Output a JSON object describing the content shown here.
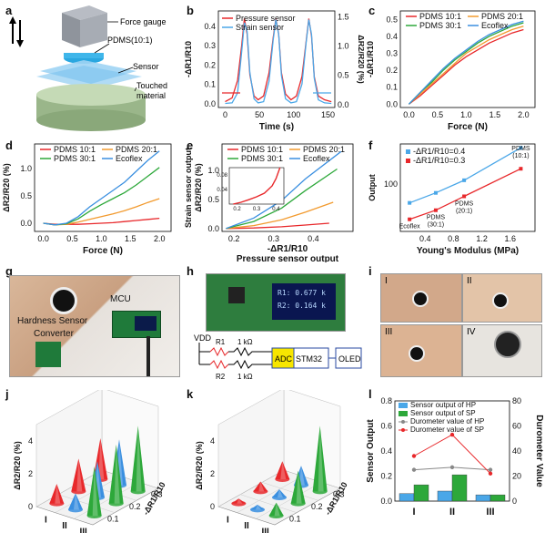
{
  "panel_letters": [
    "a",
    "b",
    "c",
    "d",
    "e",
    "f",
    "g",
    "h",
    "i",
    "j",
    "k",
    "l"
  ],
  "panel_a": {
    "labels": [
      "Force gauge",
      "PDMS(10:1)",
      "Sensor",
      "Touched",
      "material"
    ]
  },
  "panel_g": {
    "labels": [
      "MCU",
      "Hardness Sensor",
      "Converter"
    ]
  },
  "panel_h": {
    "screen_lines": [
      "R1: 0.677 k",
      "R2: 0.164 k"
    ],
    "circuit": [
      "VDD",
      "R1",
      "R2",
      "1 kΩ",
      "1 kΩ",
      "ADC",
      "STM32",
      "OLED"
    ]
  },
  "panel_i": {
    "roman": [
      "I",
      "II",
      "III",
      "IV"
    ]
  },
  "colors": {
    "red": "#e8282b",
    "blue": "#3a8fe0",
    "orange": "#f29a2e",
    "green": "#2da83a",
    "lightblue": "#4aa7e8",
    "gray": "#888888"
  },
  "chart_data": [
    {
      "id": "b",
      "type": "line",
      "xlabel": "Time (s)",
      "ylabel_left": "-ΔR1/R10",
      "ylabel_right": "ΔR2/R20 (%)",
      "xlim": [
        -10,
        160
      ],
      "ylim_left": [
        -0.02,
        0.48
      ],
      "ylim_right": [
        -0.05,
        1.6
      ],
      "xticks": [
        0,
        50,
        100,
        150
      ],
      "yticks_left": [
        0.0,
        0.1,
        0.2,
        0.3,
        0.4
      ],
      "yticks_right": [
        0.0,
        0.5,
        1.0,
        1.5
      ],
      "series": [
        {
          "name": "Pressure sensor",
          "axis": "left",
          "x": [
            0,
            10,
            18,
            24,
            28,
            32,
            36,
            42,
            48,
            56,
            64,
            70,
            74,
            78,
            82,
            88,
            96,
            104,
            112,
            118,
            122,
            126,
            130,
            136,
            145,
            155
          ],
          "y": [
            0.01,
            0.03,
            0.12,
            0.3,
            0.44,
            0.36,
            0.15,
            0.04,
            0.02,
            0.04,
            0.16,
            0.34,
            0.44,
            0.36,
            0.16,
            0.05,
            0.02,
            0.04,
            0.14,
            0.32,
            0.44,
            0.35,
            0.14,
            0.04,
            0.02,
            0.01
          ]
        },
        {
          "name": "Strain sensor",
          "axis": "right",
          "x": [
            0,
            10,
            18,
            24,
            28,
            32,
            36,
            42,
            48,
            56,
            64,
            70,
            74,
            78,
            82,
            88,
            96,
            104,
            112,
            118,
            122,
            126,
            130,
            136,
            145,
            155
          ],
          "y": [
            0.02,
            0.03,
            0.2,
            0.9,
            1.4,
            1.25,
            0.55,
            0.1,
            0.03,
            0.05,
            0.4,
            1.1,
            1.45,
            1.2,
            0.5,
            0.1,
            0.03,
            0.05,
            0.35,
            1.05,
            1.45,
            1.2,
            0.45,
            0.08,
            0.03,
            0.02
          ]
        }
      ]
    },
    {
      "id": "c",
      "type": "line",
      "xlabel": "Force (N)",
      "ylabel": "-ΔR1/R10",
      "xlim": [
        -0.15,
        2.2
      ],
      "ylim": [
        -0.02,
        0.55
      ],
      "xticks": [
        0.0,
        0.5,
        1.0,
        1.5,
        2.0
      ],
      "yticks": [
        0.0,
        0.1,
        0.2,
        0.3,
        0.4,
        0.5
      ],
      "x": [
        0.0,
        0.2,
        0.4,
        0.6,
        0.8,
        1.0,
        1.2,
        1.4,
        1.6,
        1.8,
        2.0
      ],
      "series": [
        {
          "name": "PDMS 10:1",
          "color": "red",
          "y": [
            0.0,
            0.05,
            0.11,
            0.17,
            0.23,
            0.28,
            0.32,
            0.36,
            0.39,
            0.42,
            0.44
          ]
        },
        {
          "name": "PDMS 20:1",
          "color": "orange",
          "y": [
            0.0,
            0.06,
            0.12,
            0.18,
            0.24,
            0.3,
            0.34,
            0.38,
            0.41,
            0.44,
            0.46
          ]
        },
        {
          "name": "PDMS 30:1",
          "color": "green",
          "y": [
            0.0,
            0.07,
            0.13,
            0.2,
            0.26,
            0.31,
            0.36,
            0.4,
            0.43,
            0.46,
            0.48
          ]
        },
        {
          "name": "Ecoflex",
          "color": "blue",
          "y": [
            0.0,
            0.07,
            0.14,
            0.21,
            0.27,
            0.32,
            0.37,
            0.41,
            0.44,
            0.47,
            0.49
          ]
        }
      ]
    },
    {
      "id": "d",
      "type": "line",
      "xlabel": "Force (N)",
      "ylabel": "ΔR2/R20 (%)",
      "xlim": [
        -0.15,
        2.2
      ],
      "ylim": [
        -0.15,
        1.45
      ],
      "xticks": [
        0.0,
        0.5,
        1.0,
        1.5,
        2.0
      ],
      "yticks": [
        0.0,
        0.5,
        1.0
      ],
      "x": [
        0.0,
        0.2,
        0.4,
        0.6,
        0.8,
        1.0,
        1.2,
        1.4,
        1.6,
        1.8,
        2.0
      ],
      "series": [
        {
          "name": "PDMS 10:1",
          "color": "red",
          "y": [
            0.0,
            -0.02,
            -0.02,
            -0.02,
            -0.01,
            0.0,
            0.01,
            0.03,
            0.05,
            0.07,
            0.09
          ]
        },
        {
          "name": "PDMS 20:1",
          "color": "orange",
          "y": [
            0.0,
            -0.03,
            -0.02,
            0.02,
            0.07,
            0.12,
            0.17,
            0.23,
            0.3,
            0.38,
            0.45
          ]
        },
        {
          "name": "PDMS 30:1",
          "color": "green",
          "y": [
            0.0,
            -0.03,
            -0.01,
            0.08,
            0.22,
            0.34,
            0.45,
            0.56,
            0.7,
            0.86,
            1.02
          ]
        },
        {
          "name": "Ecoflex",
          "color": "blue",
          "y": [
            0.0,
            -0.03,
            0.0,
            0.12,
            0.3,
            0.45,
            0.6,
            0.75,
            0.95,
            1.15,
            1.32
          ]
        }
      ]
    },
    {
      "id": "e",
      "type": "line",
      "xlabel": "-ΔR1/R10",
      "xlabel2": "Pressure sensor output",
      "ylabel": "Strain sensor output",
      "ylabel2": "ΔR2/R20 (%)",
      "xlim": [
        0.17,
        0.5
      ],
      "ylim": [
        -0.05,
        1.45
      ],
      "xticks": [
        0.2,
        0.3,
        0.4
      ],
      "yticks": [
        0.0,
        0.5,
        1.0
      ],
      "inset": {
        "xticks": [
          0.2,
          0.3,
          0.4
        ],
        "yticks": [
          0.04,
          0.08
        ],
        "x": [
          0.18,
          0.22,
          0.26,
          0.3,
          0.34,
          0.36,
          0.38,
          0.4,
          0.42
        ],
        "y": [
          0.0,
          0.005,
          0.012,
          0.02,
          0.03,
          0.04,
          0.05,
          0.07,
          0.1
        ]
      },
      "series": [
        {
          "name": "PDMS 10:1",
          "color": "red",
          "x": [
            0.18,
            0.25,
            0.32,
            0.38,
            0.44
          ],
          "y": [
            0.0,
            0.01,
            0.03,
            0.06,
            0.09
          ]
        },
        {
          "name": "PDMS 20:1",
          "color": "orange",
          "x": [
            0.18,
            0.25,
            0.32,
            0.38,
            0.45
          ],
          "y": [
            0.0,
            0.05,
            0.15,
            0.28,
            0.45
          ]
        },
        {
          "name": "PDMS 30:1",
          "color": "green",
          "x": [
            0.18,
            0.25,
            0.32,
            0.38,
            0.46
          ],
          "y": [
            0.0,
            0.12,
            0.35,
            0.65,
            1.02
          ]
        },
        {
          "name": "Ecoflex",
          "color": "blue",
          "x": [
            0.18,
            0.25,
            0.32,
            0.38,
            0.47
          ],
          "y": [
            0.0,
            0.18,
            0.48,
            0.85,
            1.32
          ]
        }
      ]
    },
    {
      "id": "f",
      "type": "line",
      "yscale": "log",
      "xlabel": "Young's Modulus (MPa)",
      "ylabel": "Output",
      "xlim": [
        0.05,
        1.95
      ],
      "ylim": [
        10,
        700
      ],
      "xticks": [
        0.4,
        0.8,
        1.2,
        1.6
      ],
      "yticks": [
        100
      ],
      "series": [
        {
          "name": "-ΔR1/R10=0.4",
          "color": "lightblue",
          "x": [
            0.18,
            0.55,
            0.95,
            1.75
          ],
          "y": [
            40,
            65,
            120,
            580
          ]
        },
        {
          "name": "-ΔR1/R10=0.3",
          "color": "red",
          "x": [
            0.18,
            0.55,
            0.95,
            1.75
          ],
          "y": [
            18,
            28,
            55,
            210
          ]
        }
      ],
      "point_labels": [
        "Ecoflex",
        "PDMS\n(30:1)",
        "PDMS\n(20:1)",
        "PDMS\n(10:1)"
      ]
    },
    {
      "id": "j",
      "type": "bar3d",
      "zlabel": "ΔR2/R20 (%)",
      "ylabel": "-ΔR1/R10",
      "xcats": [
        "I",
        "II",
        "III"
      ],
      "zticks": [
        0,
        2,
        4
      ],
      "yticks": [
        0.1,
        0.2,
        0.3
      ],
      "cones": [
        {
          "row": 0,
          "col": 0,
          "color": "red",
          "h": 1.2
        },
        {
          "row": 0,
          "col": 1,
          "color": "blue",
          "h": 1.0
        },
        {
          "row": 0,
          "col": 2,
          "color": "green",
          "h": 3.0
        },
        {
          "row": 1,
          "col": 0,
          "color": "red",
          "h": 2.0
        },
        {
          "row": 1,
          "col": 1,
          "color": "blue",
          "h": 2.2
        },
        {
          "row": 1,
          "col": 2,
          "color": "green",
          "h": 3.6
        },
        {
          "row": 2,
          "col": 0,
          "color": "red",
          "h": 2.5
        },
        {
          "row": 2,
          "col": 1,
          "color": "blue",
          "h": 2.8
        },
        {
          "row": 2,
          "col": 2,
          "color": "green",
          "h": 4.0
        }
      ]
    },
    {
      "id": "k",
      "type": "bar3d",
      "zlabel": "ΔR2/R20 (%)",
      "ylabel": "-ΔR1/R10",
      "xcats": [
        "I",
        "II",
        "III"
      ],
      "zticks": [
        0,
        2,
        4
      ],
      "yticks": [
        0.1,
        0.2,
        0.3
      ],
      "cones": [
        {
          "row": 0,
          "col": 0,
          "color": "red",
          "h": 0.3
        },
        {
          "row": 0,
          "col": 1,
          "color": "blue",
          "h": 0.3
        },
        {
          "row": 0,
          "col": 2,
          "color": "green",
          "h": 0.8
        },
        {
          "row": 1,
          "col": 0,
          "color": "red",
          "h": 0.6
        },
        {
          "row": 1,
          "col": 1,
          "color": "blue",
          "h": 0.5
        },
        {
          "row": 1,
          "col": 2,
          "color": "green",
          "h": 2.0
        },
        {
          "row": 2,
          "col": 0,
          "color": "red",
          "h": 1.1
        },
        {
          "row": 2,
          "col": 1,
          "color": "blue",
          "h": 1.2
        },
        {
          "row": 2,
          "col": 2,
          "color": "green",
          "h": 4.0
        }
      ]
    },
    {
      "id": "l",
      "type": "bar",
      "categories": [
        "I",
        "II",
        "III"
      ],
      "ylabel": "Sensor Output",
      "ylabel_right": "Durometer Value",
      "ylim": [
        0,
        0.8
      ],
      "ylim_right": [
        0,
        80
      ],
      "yticks": [
        0.0,
        0.2,
        0.4,
        0.6,
        0.8
      ],
      "yticks_right": [
        0,
        20,
        40,
        60,
        80
      ],
      "series": [
        {
          "name": "Sensor output of HP",
          "color": "lightblue",
          "values": [
            0.06,
            0.08,
            0.05
          ]
        },
        {
          "name": "Sensor output of SP",
          "color": "green",
          "values": [
            0.13,
            0.21,
            0.05
          ]
        },
        {
          "name": "Durometer value of HP",
          "color": "gray",
          "axis": "right",
          "values": [
            25,
            27,
            25
          ]
        },
        {
          "name": "Durometer value of SP",
          "color": "red",
          "axis": "right",
          "values": [
            36,
            53,
            22
          ]
        }
      ]
    }
  ]
}
